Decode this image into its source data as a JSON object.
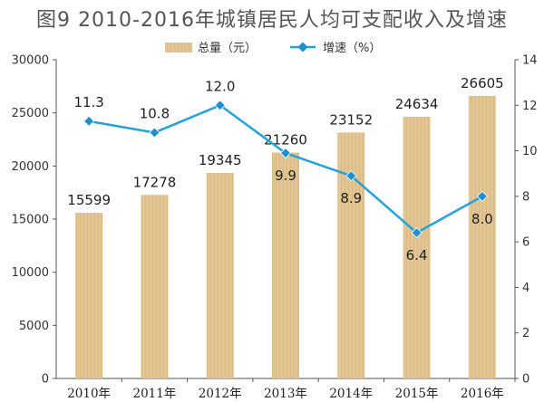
{
  "title": "图9  2010-2016年城镇居民人均可支配收入及增速",
  "colors": {
    "bar": "#e2c595",
    "bar_stripe": "#d9b881",
    "line": "#22a3dc",
    "marker": "#1f8fd0",
    "axis": "#555555"
  },
  "legend": {
    "bar_label": "总量（元）",
    "line_label": "增速（%）"
  },
  "chart_data": {
    "type": "bar",
    "title": "图9  2010-2016年城镇居民人均可支配收入及增速",
    "categories": [
      "2010年",
      "2011年",
      "2012年",
      "2013年",
      "2014年",
      "2015年",
      "2016年"
    ],
    "series": [
      {
        "name": "总量（元）",
        "type": "bar",
        "axis": "left",
        "values": [
          15599,
          17278,
          19345,
          21260,
          23152,
          24634,
          26605
        ]
      },
      {
        "name": "增速（%）",
        "type": "line",
        "axis": "right",
        "values": [
          11.3,
          10.8,
          12.0,
          9.9,
          8.9,
          6.4,
          8.0
        ]
      }
    ],
    "bar_labels": [
      "15599",
      "17278",
      "19345",
      "21260",
      "23152",
      "24634",
      "26605"
    ],
    "line_labels": [
      "11.3",
      "10.8",
      "12.0",
      "9.9",
      "8.9",
      "6.4",
      "8.0"
    ],
    "ylim_left": [
      0,
      30000
    ],
    "ylim_right": [
      0,
      14
    ],
    "yticks_left": [
      "0",
      "5000",
      "10000",
      "15000",
      "20000",
      "25000",
      "30000"
    ],
    "yticks_right": [
      "0",
      "2",
      "4",
      "6",
      "8",
      "10",
      "12",
      "14"
    ],
    "legend_position": "top-center",
    "grid": false
  }
}
